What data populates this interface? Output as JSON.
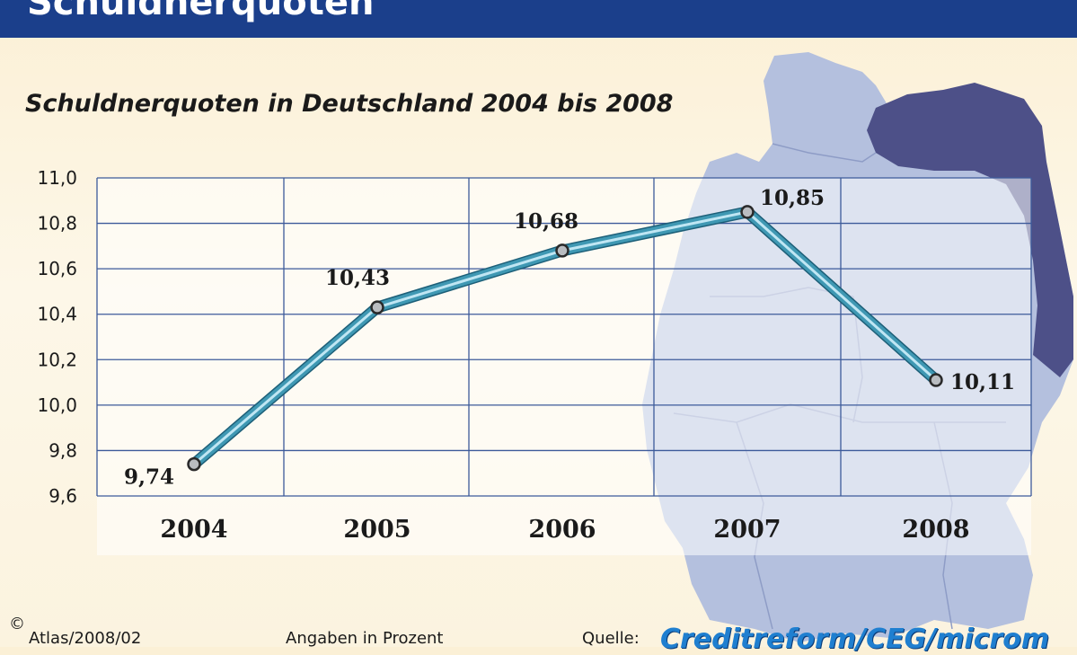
{
  "header": {
    "title": "Schuldnerquoten"
  },
  "chart_data": {
    "type": "line",
    "title": "Schuldnerquoten in Deutschland 2004 bis 2008",
    "categories": [
      "2004",
      "2005",
      "2006",
      "2007",
      "2008"
    ],
    "values": [
      9.74,
      10.43,
      10.68,
      10.85,
      10.11
    ],
    "value_labels": [
      "9,74",
      "10,43",
      "10,68",
      "10,85",
      "10,11"
    ],
    "ylim": [
      9.6,
      11.0
    ],
    "y_ticks": [
      11.0,
      10.8,
      10.6,
      10.4,
      10.2,
      10.0,
      9.8,
      9.6
    ],
    "y_tick_labels": [
      "11,0",
      "10,8",
      "10,6",
      "10,4",
      "10,2",
      "10,0",
      "9,8",
      "9,6"
    ],
    "grid": true,
    "colors": {
      "line": "#3f98b3",
      "line_highlight": "#bfe6f3",
      "grid": "#3c5a9a",
      "marker": "#b9bcc0"
    }
  },
  "footer": {
    "copyright": "©",
    "code": "Atlas/2008/02",
    "unit_note": "Angaben in Prozent",
    "source_label": "Quelle:",
    "source_name": "Creditreform/CEG/microm"
  },
  "colors": {
    "header_bg": "#1b3f8b",
    "map_light": "#a9b6d8",
    "map_dark": "#4a4d84"
  }
}
